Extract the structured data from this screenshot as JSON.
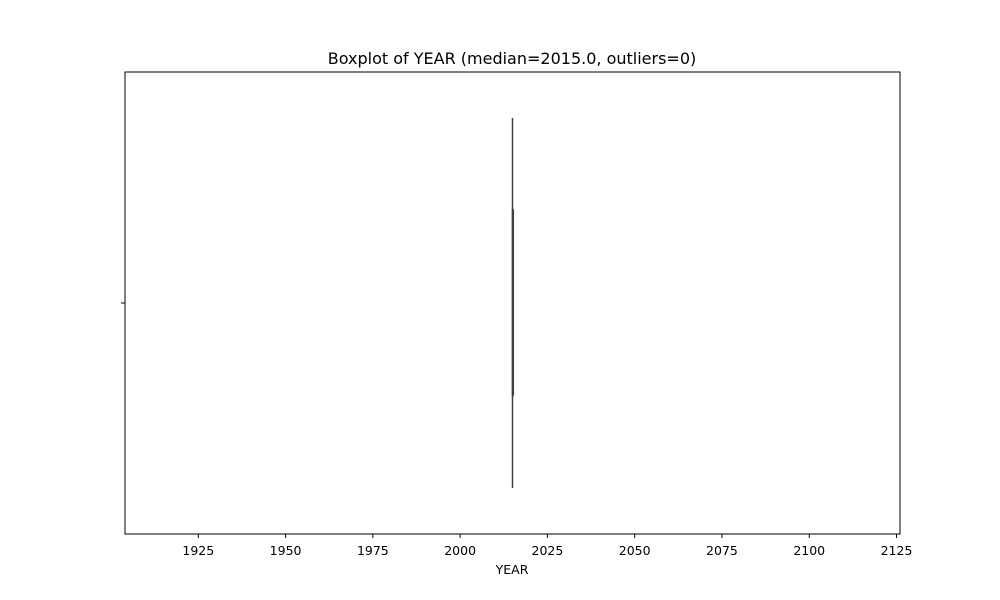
{
  "chart_data": {
    "type": "boxplot",
    "title": "Boxplot of YEAR (median=2015.0, outliers=0)",
    "xlabel": "YEAR",
    "ylabel": "",
    "orientation": "horizontal",
    "xlim": [
      1904,
      2126
    ],
    "xticks": [
      1925,
      1950,
      1975,
      2000,
      2025,
      2050,
      2075,
      2100,
      2125
    ],
    "grid": false,
    "legend": "none",
    "box": {
      "min": 2015,
      "q1": 2015,
      "median": 2015,
      "q3": 2015,
      "max": 2015,
      "outliers": []
    },
    "colors": {
      "box_line": "#3f3f3f",
      "axes": "#000000"
    }
  }
}
